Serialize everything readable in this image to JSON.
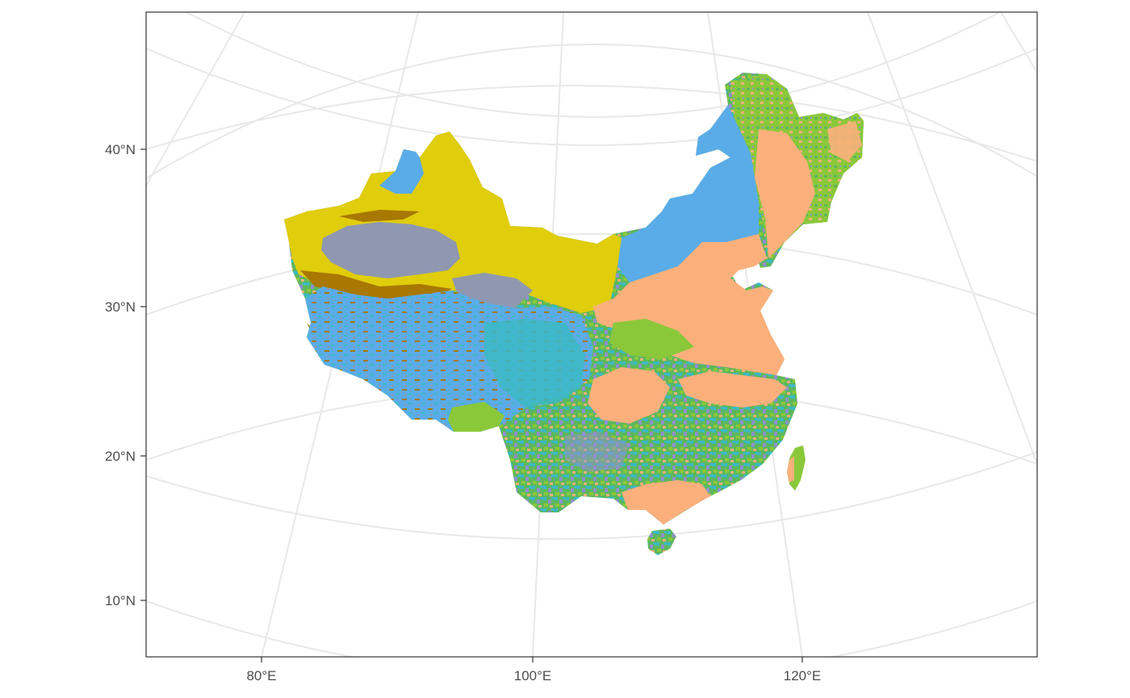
{
  "map": {
    "projection": "conic",
    "panel_border": true,
    "grid": true,
    "longitude_ticks": [
      "80°E",
      "100°E",
      "120°E"
    ],
    "latitude_ticks": [
      "40°N",
      "30°N",
      "20°N",
      "10°N"
    ],
    "colors": {
      "panel_border": "#333333",
      "graticule": "#e8e8e8",
      "tick_text": "#4d4d4d",
      "grassland_desert_yellow": "#e0cd0b",
      "barren_gray": "#8f98b0",
      "blue": "#5aace8",
      "teal": "#3cb9c4",
      "light_green": "#8ac83a",
      "salmon": "#fbb07c",
      "brown": "#a87800",
      "purple": "#8f8fd0"
    }
  }
}
